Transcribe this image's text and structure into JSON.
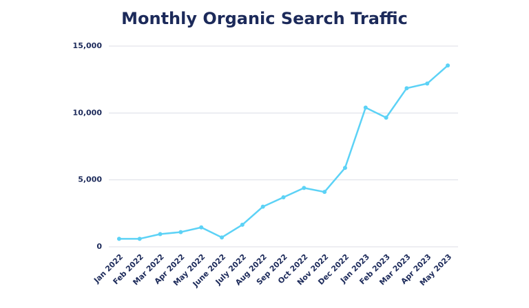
{
  "chart_data": {
    "type": "line",
    "title": "Monthly Organic Search Traffic",
    "categories": [
      "Jan 2022",
      "Feb 2022",
      "Mar 2022",
      "Apr 2022",
      "May 2022",
      "June 2022",
      "July 2022",
      "Aug 2022",
      "Sep 2022",
      "Oct 2022",
      "Nov 2022",
      "Dec 2022",
      "Jan 2023",
      "Feb 2023",
      "Mar 2023",
      "Apr 2023",
      "May 2023"
    ],
    "values": [
      600,
      600,
      950,
      1100,
      1450,
      700,
      1650,
      3000,
      3700,
      4400,
      4100,
      5900,
      10400,
      9650,
      11850,
      12200,
      13550
    ],
    "color": "#5cd2f6",
    "ylim": [
      0,
      15000
    ],
    "yticks": [
      0,
      {
        "value": 5000,
        "label": "5,000"
      },
      {
        "value": 10000,
        "label": "10,000"
      },
      {
        "value": 15000,
        "label": "15,000"
      }
    ],
    "grid": true
  }
}
